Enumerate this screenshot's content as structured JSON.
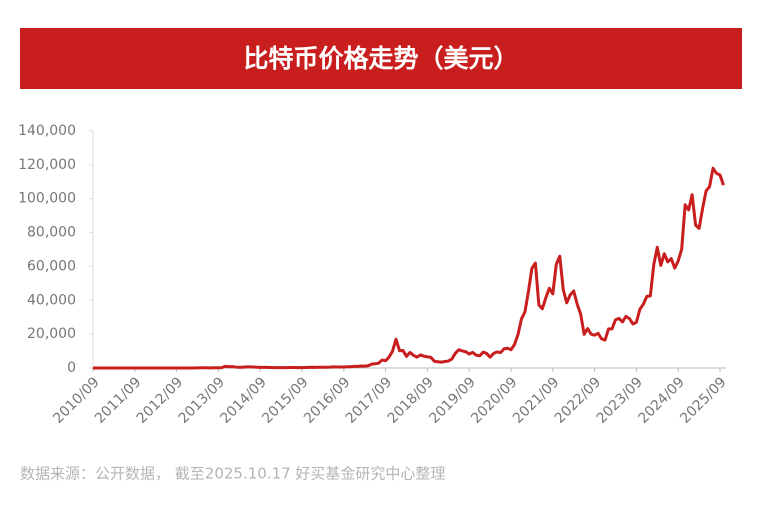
{
  "chart_data": {
    "type": "line",
    "title": "比特币价格走势（美元）",
    "source": "数据来源：公开数据， 截至2025.10.17 好买基金研究中心整理",
    "color": "#c81e1e",
    "x": [
      "2010/09",
      "2010/10",
      "2010/11",
      "2010/12",
      "2011/01",
      "2011/02",
      "2011/03",
      "2011/04",
      "2011/05",
      "2011/06",
      "2011/07",
      "2011/08",
      "2011/09",
      "2011/10",
      "2011/11",
      "2011/12",
      "2012/01",
      "2012/02",
      "2012/03",
      "2012/04",
      "2012/05",
      "2012/06",
      "2012/07",
      "2012/08",
      "2012/09",
      "2012/10",
      "2012/11",
      "2012/12",
      "2013/01",
      "2013/02",
      "2013/03",
      "2013/04",
      "2013/05",
      "2013/06",
      "2013/07",
      "2013/08",
      "2013/09",
      "2013/10",
      "2013/11",
      "2013/12",
      "2014/01",
      "2014/02",
      "2014/03",
      "2014/04",
      "2014/05",
      "2014/06",
      "2014/07",
      "2014/08",
      "2014/09",
      "2014/10",
      "2014/11",
      "2014/12",
      "2015/01",
      "2015/02",
      "2015/03",
      "2015/04",
      "2015/05",
      "2015/06",
      "2015/07",
      "2015/08",
      "2015/09",
      "2015/10",
      "2015/11",
      "2015/12",
      "2016/01",
      "2016/02",
      "2016/03",
      "2016/04",
      "2016/05",
      "2016/06",
      "2016/07",
      "2016/08",
      "2016/09",
      "2016/10",
      "2016/11",
      "2016/12",
      "2017/01",
      "2017/02",
      "2017/03",
      "2017/04",
      "2017/05",
      "2017/06",
      "2017/07",
      "2017/08",
      "2017/09",
      "2017/10",
      "2017/11",
      "2017/12",
      "2018/01",
      "2018/02",
      "2018/03",
      "2018/04",
      "2018/05",
      "2018/06",
      "2018/07",
      "2018/08",
      "2018/09",
      "2018/10",
      "2018/11",
      "2018/12",
      "2019/01",
      "2019/02",
      "2019/03",
      "2019/04",
      "2019/05",
      "2019/06",
      "2019/07",
      "2019/08",
      "2019/09",
      "2019/10",
      "2019/11",
      "2019/12",
      "2020/01",
      "2020/02",
      "2020/03",
      "2020/04",
      "2020/05",
      "2020/06",
      "2020/07",
      "2020/08",
      "2020/09",
      "2020/10",
      "2020/11",
      "2020/12",
      "2021/01",
      "2021/02",
      "2021/03",
      "2021/04",
      "2021/05",
      "2021/06",
      "2021/07",
      "2021/08",
      "2021/09",
      "2021/10",
      "2021/11",
      "2021/12",
      "2022/01",
      "2022/02",
      "2022/03",
      "2022/04",
      "2022/05",
      "2022/06",
      "2022/07",
      "2022/08",
      "2022/09",
      "2022/10",
      "2022/11",
      "2022/12",
      "2023/01",
      "2023/02",
      "2023/03",
      "2023/04",
      "2023/05",
      "2023/06",
      "2023/07",
      "2023/08",
      "2023/09",
      "2023/10",
      "2023/11",
      "2023/12",
      "2024/01",
      "2024/02",
      "2024/03",
      "2024/04",
      "2024/05",
      "2024/06",
      "2024/07",
      "2024/08",
      "2024/09",
      "2024/10",
      "2024/11",
      "2024/12",
      "2025/01",
      "2025/02",
      "2025/03",
      "2025/04",
      "2025/05",
      "2025/06",
      "2025/07",
      "2025/08",
      "2025/09",
      "2025/10"
    ],
    "values": [
      0.06,
      0.2,
      0.2,
      0.3,
      0.5,
      1,
      0.8,
      3.5,
      8.7,
      16.1,
      13.4,
      8.2,
      5.1,
      3.2,
      3,
      4.7,
      5.5,
      4.9,
      4.9,
      5,
      5.2,
      6.7,
      9.3,
      10.2,
      12.4,
      11.2,
      12.6,
      13.5,
      20,
      33,
      93,
      139,
      129,
      97,
      106,
      135,
      133,
      203,
      1000,
      757,
      800,
      550,
      450,
      440,
      630,
      640,
      580,
      480,
      390,
      340,
      380,
      320,
      220,
      255,
      245,
      235,
      230,
      263,
      285,
      230,
      236,
      315,
      377,
      430,
      370,
      437,
      416,
      448,
      530,
      670,
      624,
      575,
      610,
      700,
      742,
      964,
      970,
      1190,
      1080,
      1350,
      2300,
      2480,
      2870,
      4700,
      4340,
      6470,
      10000,
      17000,
      10200,
      10300,
      6900,
      9200,
      7500,
      6400,
      7700,
      7000,
      6600,
      6300,
      4000,
      3700,
      3450,
      3850,
      4100,
      5300,
      8600,
      10800,
      10100,
      9600,
      8300,
      9200,
      7600,
      7200,
      9350,
      8600,
      6400,
      8600,
      9500,
      9100,
      11300,
      11700,
      10800,
      13800,
      19700,
      29000,
      33100,
      45200,
      58900,
      62000,
      37300,
      35000,
      41500,
      47100,
      43800,
      61300,
      66000,
      46300,
      38500,
      43200,
      45500,
      37700,
      31800,
      19900,
      23300,
      20000,
      19400,
      20500,
      17200,
      16500,
      23100,
      23100,
      28500,
      29300,
      27200,
      30500,
      29200,
      26000,
      27000,
      34700,
      37700,
      42300,
      42600,
      61200,
      71300,
      60600,
      67500,
      62700,
      64600,
      59000,
      63300,
      70200,
      96400,
      93400,
      102400,
      84400,
      82500,
      94200,
      104600,
      107100,
      118000,
      115000,
      114000,
      108000
    ],
    "xticks": [
      "2010/09",
      "2011/09",
      "2012/09",
      "2013/09",
      "2014/09",
      "2015/09",
      "2016/09",
      "2017/09",
      "2018/09",
      "2019/09",
      "2020/09",
      "2021/09",
      "2022/09",
      "2023/09",
      "2024/09",
      "2025/09"
    ],
    "ylim": [
      0,
      140000
    ],
    "yticks": [
      0,
      {
        "value": 20000,
        "label": "20,000"
      },
      {
        "value": 40000,
        "label": "40,000"
      },
      {
        "value": 60000,
        "label": "60,000"
      },
      {
        "value": 80000,
        "label": "80,000"
      },
      {
        "value": 100000,
        "label": "100,000"
      },
      {
        "value": 120000,
        "label": "120,000"
      },
      {
        "value": 140000,
        "label": "140,000"
      }
    ]
  }
}
